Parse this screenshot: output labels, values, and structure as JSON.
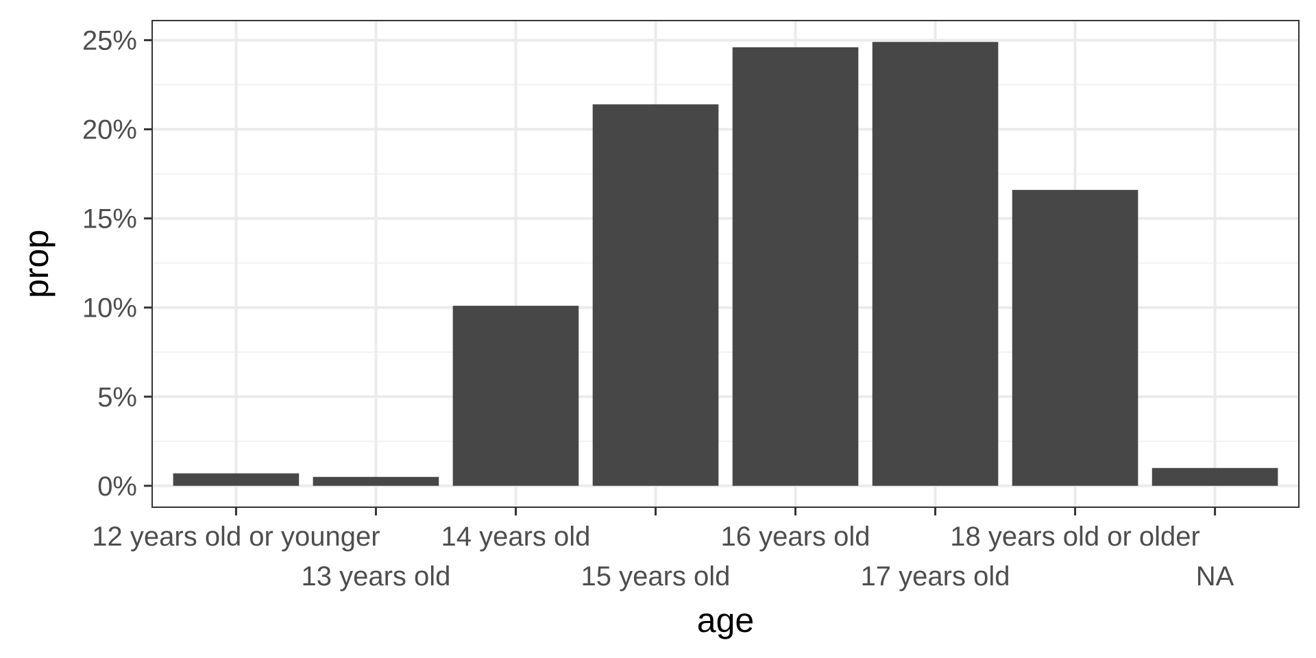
{
  "chart_data": {
    "type": "bar",
    "xlabel": "age",
    "ylabel": "prop",
    "categories": [
      "12 years old or younger",
      "13 years old",
      "14 years old",
      "15 years old",
      "16 years old",
      "17 years old",
      "18 years old or older",
      "NA"
    ],
    "values": [
      0.7,
      0.5,
      10.1,
      21.4,
      24.6,
      24.9,
      16.6,
      1.0
    ],
    "value_unit": "%",
    "ylim": [
      -1.2,
      26.1
    ],
    "y_ticks": [
      0,
      5,
      10,
      15,
      20,
      25
    ],
    "y_tick_labels": [
      "0%",
      "5%",
      "10%",
      "15%",
      "20%",
      "25%"
    ],
    "grid": true,
    "legend": "none",
    "colors": {
      "bar": "#474747",
      "panel_border": "#333333",
      "grid_major": "#ebebeb",
      "grid_minor": "#f2f2f2",
      "tick": "#333333"
    }
  }
}
